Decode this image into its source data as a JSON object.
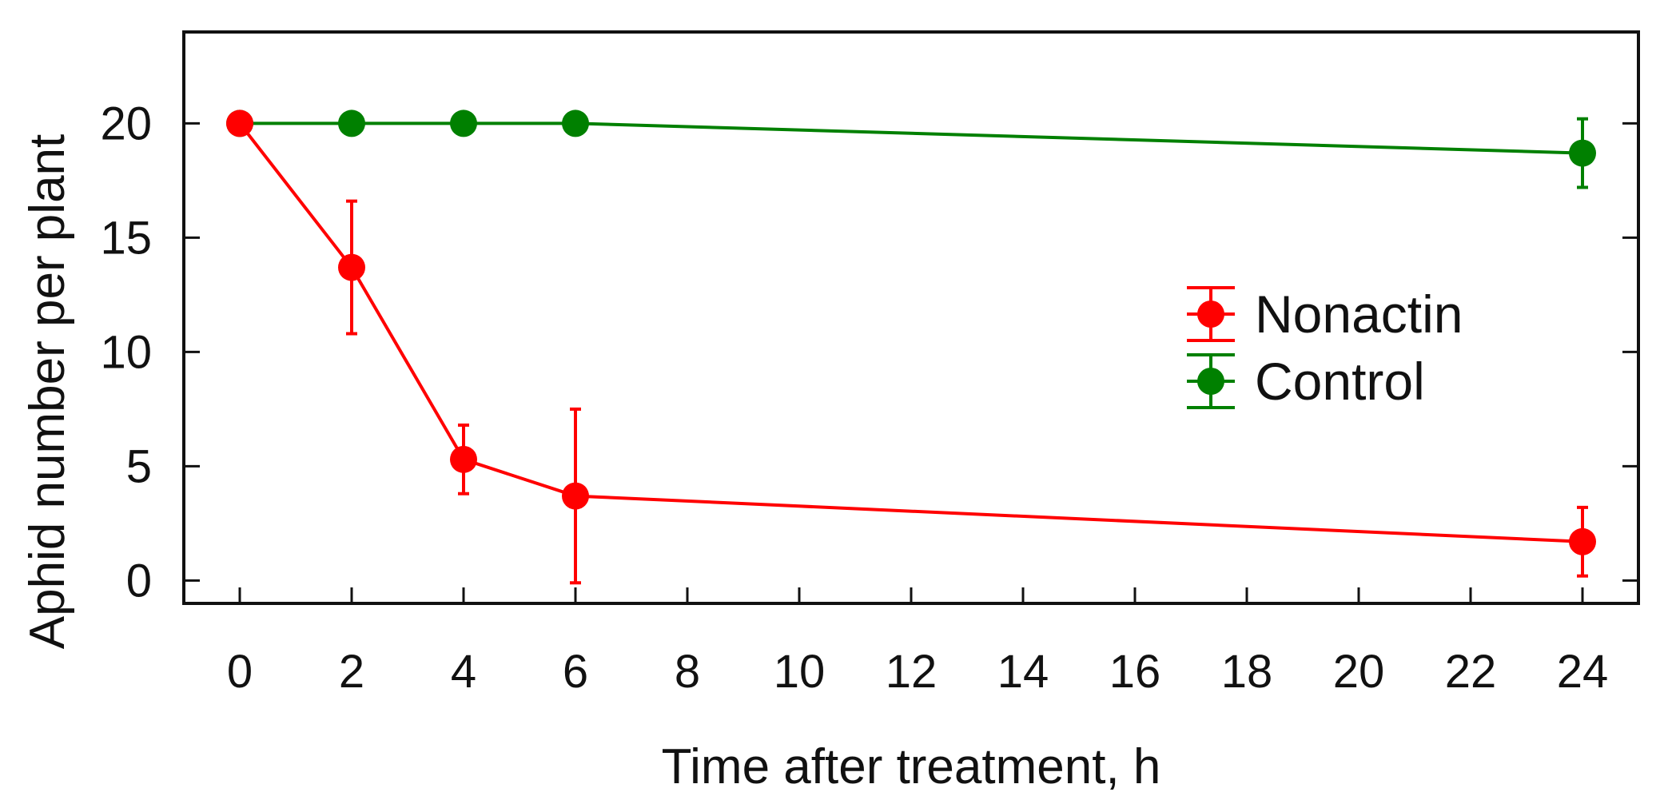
{
  "chart_data": {
    "type": "line",
    "title": "",
    "xlabel": "Time after treatment, h",
    "ylabel": "Aphid number per plant",
    "xlim": [
      -1,
      25
    ],
    "ylim": [
      -1,
      24
    ],
    "xticks": [
      0,
      2,
      4,
      6,
      8,
      10,
      12,
      14,
      16,
      18,
      20,
      22,
      24
    ],
    "yticks": [
      0,
      5,
      10,
      15,
      20
    ],
    "grid": false,
    "legend_position": "right",
    "series": [
      {
        "name": "Nonactin",
        "color": "#ff0000",
        "x": [
          0,
          2,
          4,
          6,
          24
        ],
        "y": [
          20,
          13.7,
          5.3,
          3.7,
          1.7
        ],
        "err": [
          0,
          2.9,
          1.5,
          3.8,
          1.5
        ]
      },
      {
        "name": "Control",
        "color": "#008000",
        "x": [
          0,
          2,
          4,
          6,
          24
        ],
        "y": [
          20,
          20,
          20,
          20,
          18.7
        ],
        "err": [
          0,
          0,
          0,
          0,
          1.5
        ]
      }
    ]
  }
}
